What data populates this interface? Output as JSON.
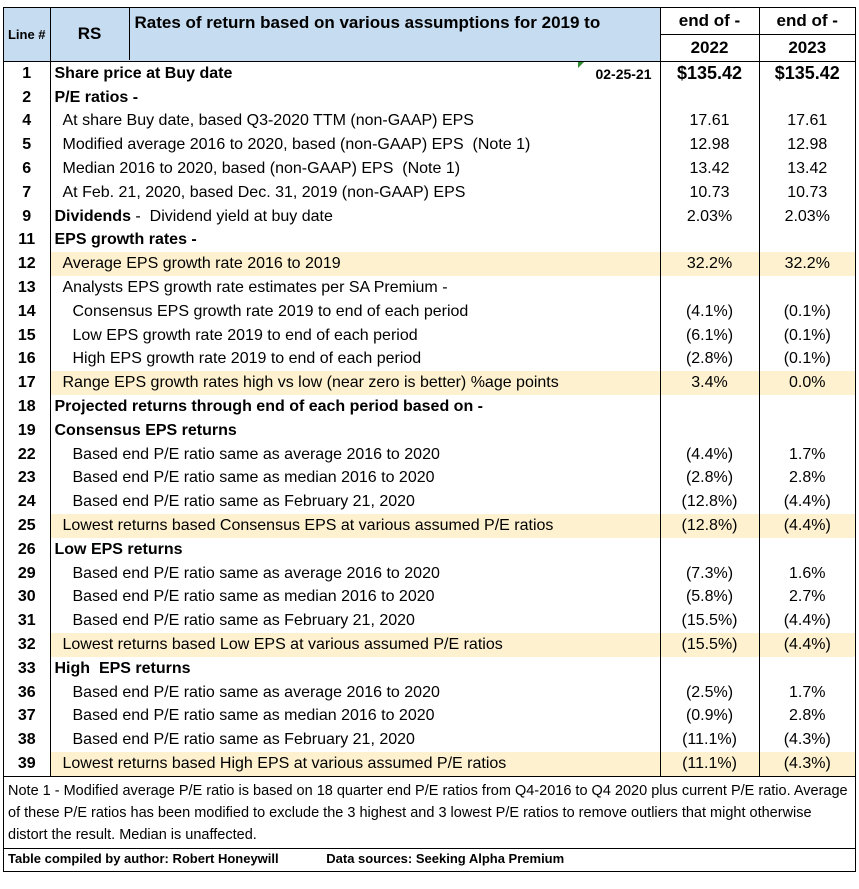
{
  "header": {
    "line_label": "Line #",
    "rs_label": "RS",
    "title": "Rates of return based on various assumptions for 2019 to",
    "col1_top": "end of -",
    "col1_bottom": "2022",
    "col2_top": "end of -",
    "col2_bottom": "2023"
  },
  "buy_date": "02-25-21",
  "rows": [
    {
      "line": "1",
      "desc": "Share price at Buy date",
      "v1": "$135.42",
      "v2": "$135.42"
    },
    {
      "line": "2",
      "desc": "P/E ratios -",
      "v1": "",
      "v2": ""
    },
    {
      "line": "4",
      "desc": "At share Buy date, based Q3-2020 TTM (non-GAAP) EPS",
      "v1": "17.61",
      "v2": "17.61"
    },
    {
      "line": "5",
      "desc": "Modified average 2016 to 2020, based (non-GAAP) EPS  (Note 1)",
      "v1": "12.98",
      "v2": "12.98"
    },
    {
      "line": "6",
      "desc": "Median 2016 to 2020, based (non-GAAP) EPS  (Note 1)",
      "v1": "13.42",
      "v2": "13.42"
    },
    {
      "line": "7",
      "desc": "At Feb. 21, 2020, based Dec. 31, 2019 (non-GAAP) EPS",
      "v1": "10.73",
      "v2": "10.73"
    },
    {
      "line": "9",
      "desc_bold": "Dividends",
      "desc": " -  Dividend yield at buy date",
      "v1": "2.03%",
      "v2": "2.03%"
    },
    {
      "line": "11",
      "desc": "EPS growth rates -",
      "v1": "",
      "v2": ""
    },
    {
      "line": "12",
      "desc": "Average EPS growth rate 2016 to 2019",
      "v1": "32.2%",
      "v2": "32.2%"
    },
    {
      "line": "13",
      "desc": "Analysts EPS growth rate estimates per SA Premium -",
      "v1": "",
      "v2": ""
    },
    {
      "line": "14",
      "desc": "Consensus EPS growth rate 2019 to end of each period",
      "v1": "(4.1%)",
      "v2": "(0.1%)"
    },
    {
      "line": "15",
      "desc": "Low EPS growth rate 2019 to end of each period",
      "v1": "(6.1%)",
      "v2": "(0.1%)"
    },
    {
      "line": "16",
      "desc": "High EPS growth rate 2019 to end of each period",
      "v1": "(2.8%)",
      "v2": "(0.1%)"
    },
    {
      "line": "17",
      "desc": "Range EPS growth rates high vs low (near zero is better) %age points",
      "v1": "3.4%",
      "v2": "0.0%"
    },
    {
      "line": "18",
      "desc": "Projected returns through end of each period based on -",
      "v1": "",
      "v2": ""
    },
    {
      "line": "19",
      "desc": "Consensus EPS returns",
      "v1": "",
      "v2": ""
    },
    {
      "line": "22",
      "desc": "Based end P/E ratio same as average 2016 to 2020",
      "v1": "(4.4%)",
      "v2": "1.7%"
    },
    {
      "line": "23",
      "desc": "Based end P/E ratio same as median 2016 to 2020",
      "v1": "(2.8%)",
      "v2": "2.8%"
    },
    {
      "line": "24",
      "desc": "Based end P/E ratio same as February 21, 2020",
      "v1": "(12.8%)",
      "v2": "(4.4%)"
    },
    {
      "line": "25",
      "desc": "Lowest returns based Consensus EPS at various assumed P/E ratios",
      "v1": "(12.8%)",
      "v2": "(4.4%)"
    },
    {
      "line": "26",
      "desc": "Low EPS returns",
      "v1": "",
      "v2": ""
    },
    {
      "line": "29",
      "desc": "Based end P/E ratio same as average 2016 to 2020",
      "v1": "(7.3%)",
      "v2": "1.6%"
    },
    {
      "line": "30",
      "desc": "Based end P/E ratio same as median 2016 to 2020",
      "v1": "(5.8%)",
      "v2": "2.7%"
    },
    {
      "line": "31",
      "desc": "Based end P/E ratio same as February 21, 2020",
      "v1": "(15.5%)",
      "v2": "(4.4%)"
    },
    {
      "line": "32",
      "desc": "Lowest returns based Low EPS at various assumed P/E ratios",
      "v1": "(15.5%)",
      "v2": "(4.4%)"
    },
    {
      "line": "33",
      "desc": "High  EPS returns",
      "v1": "",
      "v2": ""
    },
    {
      "line": "36",
      "desc": "Based end P/E ratio same as average 2016 to 2020",
      "v1": "(2.5%)",
      "v2": "1.7%"
    },
    {
      "line": "37",
      "desc": "Based end P/E ratio same as median 2016 to 2020",
      "v1": "(0.9%)",
      "v2": "2.8%"
    },
    {
      "line": "38",
      "desc": "Based end P/E ratio same as February 21, 2020",
      "v1": "(11.1%)",
      "v2": "(4.3%)"
    },
    {
      "line": "39",
      "desc": "Lowest returns based High EPS at various assumed P/E ratios",
      "v1": "(11.1%)",
      "v2": "(4.3%)"
    }
  ],
  "note": "Note 1 - Modified average P/E ratio is based on 18 quarter end  P/E ratios from Q4-2016 to Q4 2020 plus current P/E ratio. Average of these P/E ratios has been modified to exclude the 3 highest and 3 lowest P/E ratios to remove outliers that might otherwise distort the result. Median is unaffected.",
  "compiled_by": "Table compiled by author: Robert Honeywill",
  "data_sources": "Data sources: Seeking Alpha Premium"
}
